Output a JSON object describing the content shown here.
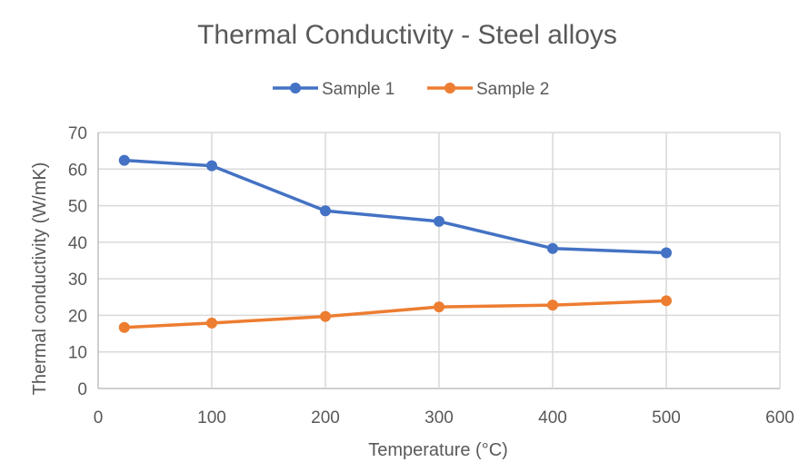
{
  "chart_data": {
    "type": "line",
    "title": "Thermal Conductivity - Steel alloys",
    "xlabel": "Temperature (°C)",
    "ylabel": "Thermal conductivity (W/mK)",
    "xlim": [
      0,
      600
    ],
    "ylim": [
      0,
      70
    ],
    "xticks": [
      0,
      100,
      200,
      300,
      400,
      500,
      600
    ],
    "yticks": [
      0,
      10,
      20,
      30,
      40,
      50,
      60,
      70
    ],
    "grid": true,
    "legend": "top",
    "x": [
      23,
      100,
      200,
      300,
      400,
      500
    ],
    "series": [
      {
        "name": "Sample 1",
        "color": "#4472C4",
        "values": [
          62.4,
          60.9,
          48.6,
          45.7,
          38.3,
          37.1
        ]
      },
      {
        "name": "Sample 2",
        "color": "#ED7D31",
        "values": [
          16.7,
          17.9,
          19.7,
          22.3,
          22.8,
          24.0
        ]
      }
    ]
  }
}
